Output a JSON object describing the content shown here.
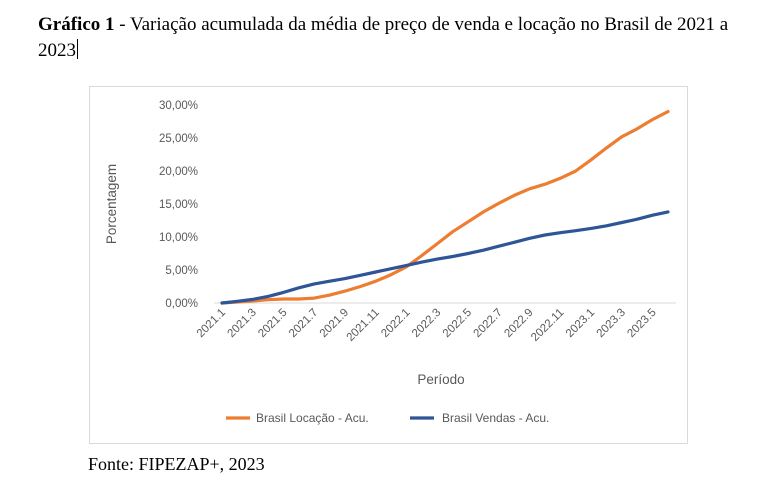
{
  "caption": {
    "label": "Gráfico 1",
    "separator": " - ",
    "text": "Variação acumulada da média de preço de venda e locação no Brasil de 2021 a 2023"
  },
  "source": "Fonte: FIPEZAP+, 2023",
  "colors": {
    "locacao": "#ED7D31",
    "vendas": "#2F5597",
    "axis_text": "#595959",
    "axis_line": "#d9d9d9"
  },
  "chart_data": {
    "type": "line",
    "title": "",
    "xlabel": "Período",
    "ylabel": "Porcentagem",
    "ylim": [
      0,
      30
    ],
    "y_ticks": [
      "0,00%",
      "5,00%",
      "10,00%",
      "15,00%",
      "20,00%",
      "25,00%",
      "30,00%"
    ],
    "x": [
      "2021.1",
      "2021.2",
      "2021.3",
      "2021.4",
      "2021.5",
      "2021.6",
      "2021.7",
      "2021.8",
      "2021.9",
      "2021.10",
      "2021.11",
      "2021.12",
      "2022.1",
      "2022.2",
      "2022.3",
      "2022.4",
      "2022.5",
      "2022.6",
      "2022.7",
      "2022.8",
      "2022.9",
      "2022.10",
      "2022.11",
      "2022.12",
      "2023.1",
      "2023.2",
      "2023.3",
      "2023.4",
      "2023.5",
      "2023.6"
    ],
    "x_tick_labels": [
      "2021.1",
      "2021.3",
      "2021.5",
      "2021.7",
      "2021.9",
      "2021.11",
      "2022.1",
      "2022.3",
      "2022.5",
      "2022.7",
      "2022.9",
      "2022.11",
      "2023.1",
      "2023.3",
      "2023.5"
    ],
    "grid": false,
    "legend": "bottom",
    "series": [
      {
        "name": "Brasil Locação - Acu.",
        "color": "#ED7D31",
        "values": [
          0.0,
          0.15,
          0.3,
          0.5,
          0.6,
          0.6,
          0.75,
          1.2,
          1.8,
          2.5,
          3.3,
          4.3,
          5.5,
          7.2,
          9.0,
          10.8,
          12.3,
          13.8,
          15.1,
          16.3,
          17.3,
          18.0,
          18.9,
          20.0,
          21.7,
          23.5,
          25.2,
          26.4,
          27.8,
          29.0
        ]
      },
      {
        "name": "Brasil Vendas - Acu.",
        "color": "#2F5597",
        "values": [
          0.0,
          0.25,
          0.55,
          1.0,
          1.6,
          2.3,
          2.9,
          3.3,
          3.7,
          4.2,
          4.7,
          5.2,
          5.7,
          6.2,
          6.65,
          7.05,
          7.5,
          8.0,
          8.6,
          9.2,
          9.8,
          10.3,
          10.65,
          10.95,
          11.3,
          11.7,
          12.2,
          12.7,
          13.3,
          13.8
        ]
      }
    ]
  }
}
